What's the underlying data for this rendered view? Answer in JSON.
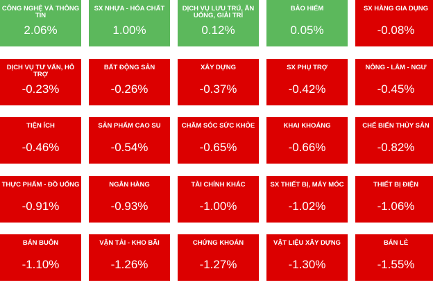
{
  "sectors": [
    {
      "name": "CÔNG NGHỆ VÀ THÔNG TIN",
      "change": "2.06%",
      "trend": "up"
    },
    {
      "name": "SX NHỰA - HÓA CHẤT",
      "change": "1.00%",
      "trend": "up"
    },
    {
      "name": "DỊCH VỤ LƯU TRÚ, ĂN UỐNG, GIẢI TRÍ",
      "change": "0.12%",
      "trend": "up"
    },
    {
      "name": "BẢO HIỂM",
      "change": "0.05%",
      "trend": "up"
    },
    {
      "name": "SX HÀNG GIA DỤNG",
      "change": "-0.08%",
      "trend": "down"
    },
    {
      "name": "DỊCH VỤ TƯ VẤN, HỖ TRỢ",
      "change": "-0.23%",
      "trend": "down"
    },
    {
      "name": "BẤT ĐỘNG SẢN",
      "change": "-0.26%",
      "trend": "down"
    },
    {
      "name": "XÂY DỰNG",
      "change": "-0.37%",
      "trend": "down"
    },
    {
      "name": "SX PHỤ TRỢ",
      "change": "-0.42%",
      "trend": "down"
    },
    {
      "name": "NÔNG - LÂM - NGƯ",
      "change": "-0.45%",
      "trend": "down"
    },
    {
      "name": "TIỆN ÍCH",
      "change": "-0.46%",
      "trend": "down"
    },
    {
      "name": "SẢN PHẨM CAO SU",
      "change": "-0.54%",
      "trend": "down"
    },
    {
      "name": "CHĂM SÓC SỨC KHỎE",
      "change": "-0.65%",
      "trend": "down"
    },
    {
      "name": "KHAI KHOÁNG",
      "change": "-0.66%",
      "trend": "down"
    },
    {
      "name": "CHẾ BIẾN THỦY SẢN",
      "change": "-0.82%",
      "trend": "down"
    },
    {
      "name": "THỰC PHẨM - ĐỒ UỐNG",
      "change": "-0.91%",
      "trend": "down"
    },
    {
      "name": "NGÂN HÀNG",
      "change": "-0.93%",
      "trend": "down"
    },
    {
      "name": "TÀI CHÍNH KHÁC",
      "change": "-1.00%",
      "trend": "down"
    },
    {
      "name": "SX THIẾT BỊ, MÁY MÓC",
      "change": "-1.02%",
      "trend": "down"
    },
    {
      "name": "THIẾT BỊ ĐIỆN",
      "change": "-1.06%",
      "trend": "down"
    },
    {
      "name": "BÁN BUÔN",
      "change": "-1.10%",
      "trend": "down"
    },
    {
      "name": "VẬN TẢI - KHO BÃI",
      "change": "-1.26%",
      "trend": "down"
    },
    {
      "name": "CHỨNG KHOÁN",
      "change": "-1.27%",
      "trend": "down"
    },
    {
      "name": "VẬT LIỆU XÂY DỰNG",
      "change": "-1.30%",
      "trend": "down"
    },
    {
      "name": "BÁN LẺ",
      "change": "-1.55%",
      "trend": "down"
    }
  ],
  "colors": {
    "up": "#5cb85c",
    "down": "#dc0000"
  }
}
